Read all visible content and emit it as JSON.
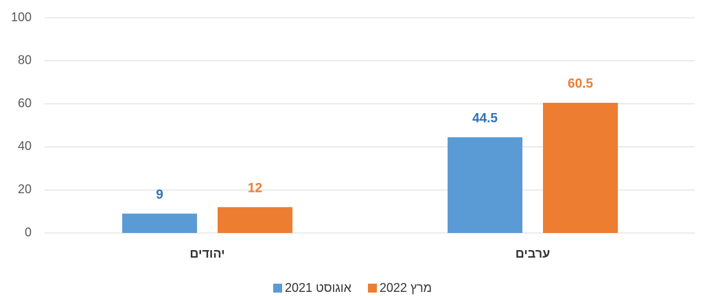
{
  "chart_data": {
    "type": "bar",
    "categories": [
      "יהודים",
      "ערבים"
    ],
    "series": [
      {
        "name": "אוגוסט 2021",
        "color": "#5b9bd5",
        "label_color": "#2e75b6",
        "values": [
          9,
          44.5
        ]
      },
      {
        "name": "מרץ 2022",
        "color": "#ed7d31",
        "label_color": "#ed7d31",
        "values": [
          12,
          60.5
        ]
      }
    ],
    "ylim": [
      0,
      100
    ],
    "yticks": [
      0,
      20,
      40,
      60,
      80,
      100
    ],
    "grid": true,
    "legend": "bottom"
  }
}
